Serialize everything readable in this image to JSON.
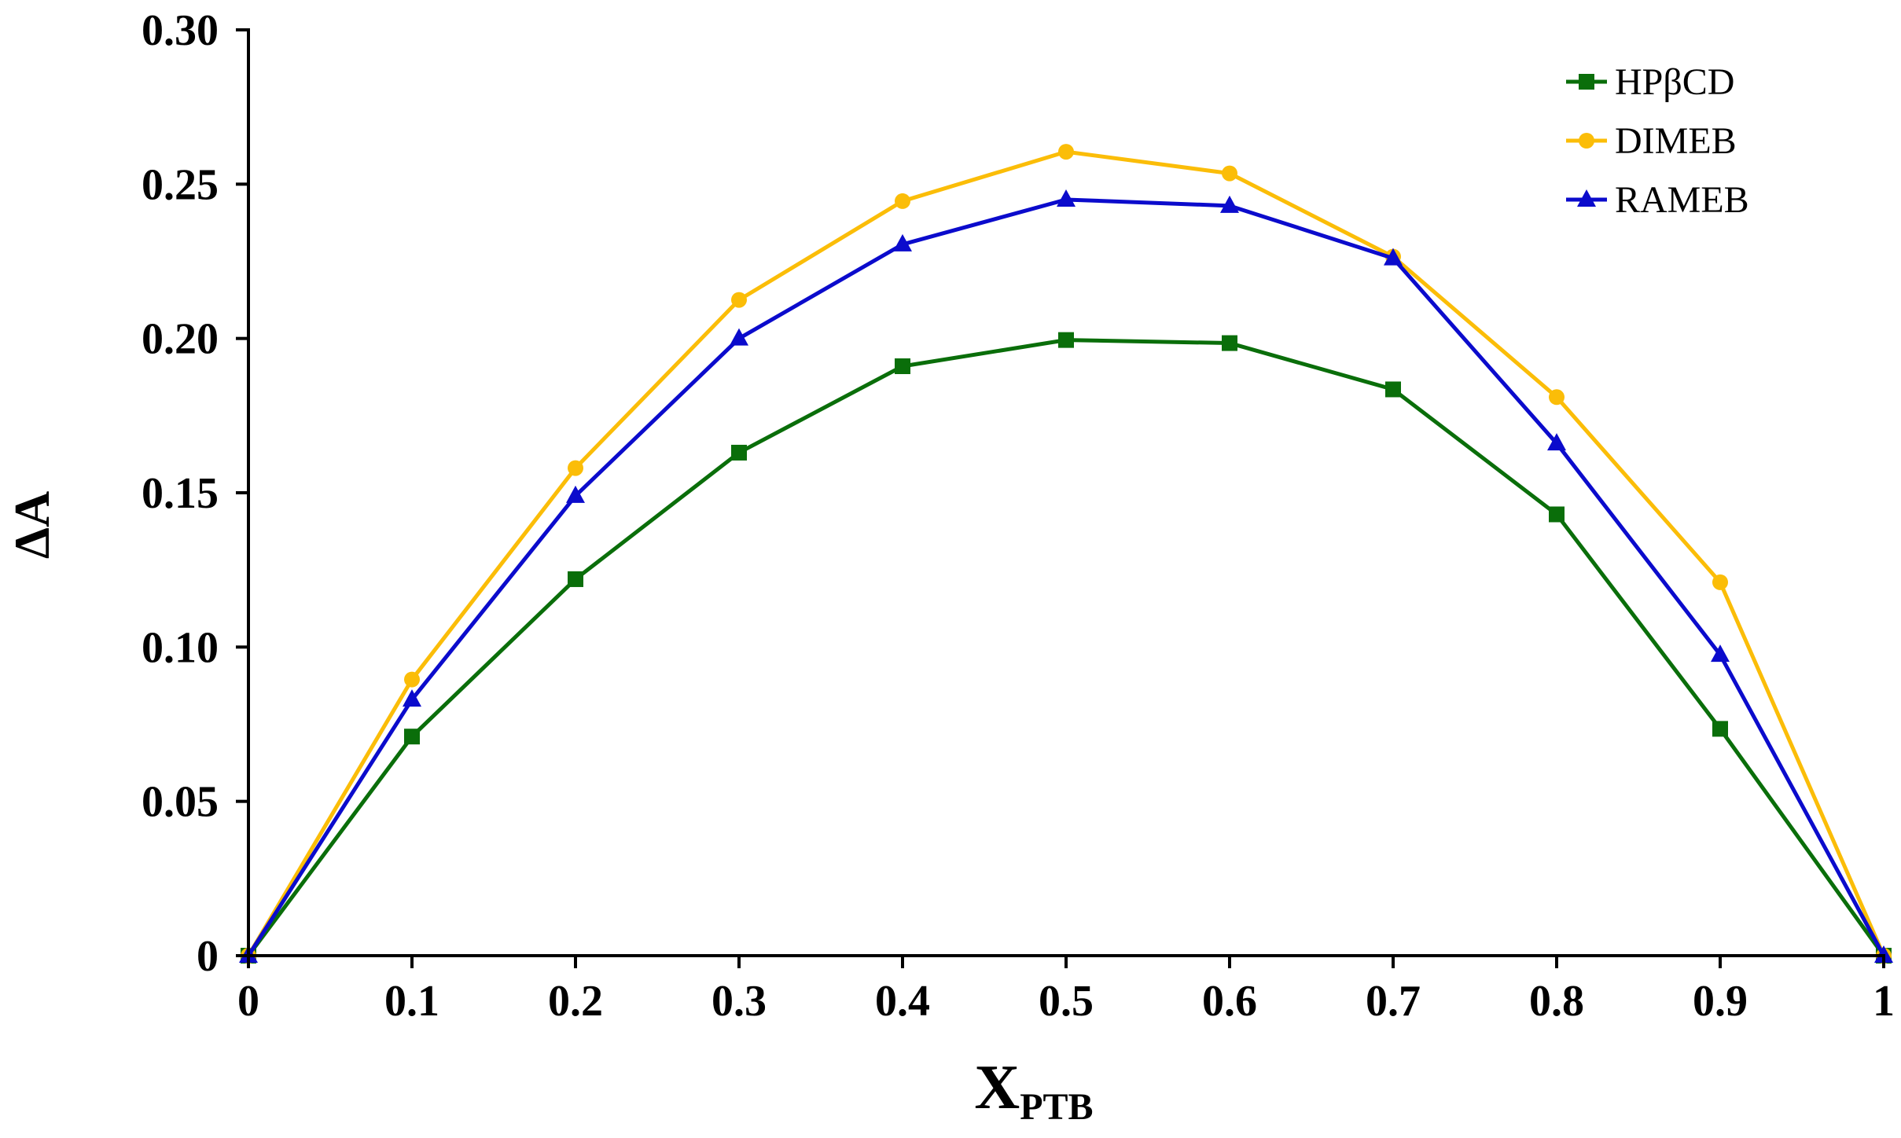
{
  "chart_data": {
    "type": "line",
    "title": "",
    "xlabel": "X",
    "xlabel_subscript": "PTB",
    "ylabel": "ΔA",
    "x": [
      0,
      0.1,
      0.2,
      0.3,
      0.4,
      0.5,
      0.6,
      0.7,
      0.8,
      0.9,
      1
    ],
    "x_tick_labels": [
      "0",
      "0.1",
      "0.2",
      "0.3",
      "0.4",
      "0.5",
      "0.6",
      "0.7",
      "0.8",
      "0.9",
      "1"
    ],
    "y_ticks": [
      0,
      0.05,
      0.1,
      0.15,
      0.2,
      0.25,
      0.3
    ],
    "y_tick_labels": [
      "0",
      "0.05",
      "0.10",
      "0.15",
      "0.20",
      "0.25",
      "0.30"
    ],
    "xlim": [
      0,
      1
    ],
    "ylim": [
      0,
      0.3
    ],
    "grid": false,
    "legend_position": "top-right",
    "series": [
      {
        "name": "HPβCD",
        "color": "#0a6e0a",
        "marker": "square",
        "values": [
          0,
          0.071,
          0.122,
          0.163,
          0.191,
          0.1995,
          0.1985,
          0.1835,
          0.143,
          0.0735,
          0
        ]
      },
      {
        "name": "DIMEB",
        "color": "#fbbd08",
        "marker": "circle",
        "values": [
          0,
          0.0895,
          0.158,
          0.2125,
          0.2445,
          0.2605,
          0.2535,
          0.2265,
          0.181,
          0.121,
          0
        ]
      },
      {
        "name": "RAMEB",
        "color": "#0b0bcc",
        "marker": "triangle",
        "values": [
          0,
          0.083,
          0.149,
          0.2,
          0.2305,
          0.245,
          0.243,
          0.226,
          0.166,
          0.0975,
          0
        ]
      }
    ]
  }
}
